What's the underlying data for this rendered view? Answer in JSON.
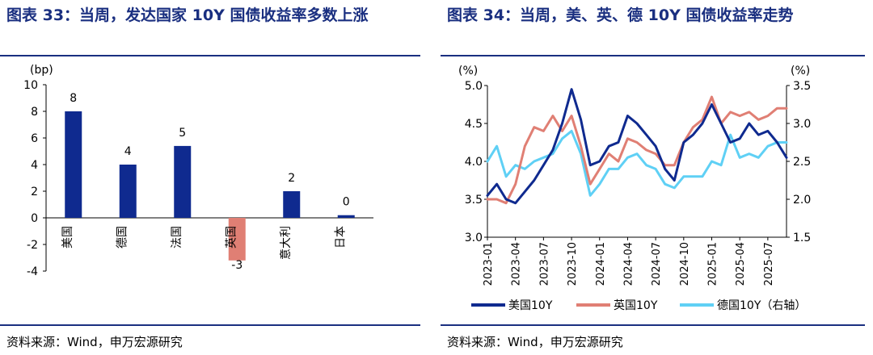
{
  "left": {
    "title": "图表 33：当周，发达国家 10Y 国债收益率多数上涨",
    "source": "资料来源：Wind，申万宏源研究"
  },
  "right": {
    "title": "图表 34：当周，美、英、德 10Y 国债收益率走势",
    "source": "资料来源：Wind，申万宏源研究"
  },
  "chart_data": [
    {
      "type": "bar",
      "title": "当周，发达国家 10Y 国债收益率多数上涨",
      "ylabel": "(bp)",
      "ylim": [
        -4,
        10
      ],
      "yticks": [
        -4,
        -2,
        0,
        2,
        4,
        6,
        8,
        10
      ],
      "categories": [
        "美国",
        "德国",
        "法国",
        "英国",
        "意大利",
        "日本"
      ],
      "values": [
        8,
        4,
        5.4,
        -3.2,
        2,
        0.2
      ],
      "data_labels": [
        "8",
        "4",
        "5",
        "-3",
        "2",
        "0"
      ],
      "colors": [
        "#0f2a8f",
        "#0f2a8f",
        "#0f2a8f",
        "#e07f74",
        "#0f2a8f",
        "#0f2a8f"
      ]
    },
    {
      "type": "line",
      "title": "当周，美、英、德 10Y 国债收益率走势",
      "left_ylabel": "(%)",
      "right_ylabel": "(%)",
      "left_ylim": [
        3.0,
        5.0
      ],
      "left_yticks": [
        "3.0",
        "3.5",
        "4.0",
        "4.5",
        "5.0"
      ],
      "right_ylim": [
        1.5,
        3.5
      ],
      "right_yticks": [
        "1.5",
        "2.0",
        "2.5",
        "3.0",
        "3.5"
      ],
      "x_range": [
        "2023-01",
        "2025-09"
      ],
      "x_ticks": [
        "2023-01",
        "2023-04",
        "2023-07",
        "2023-10",
        "2024-01",
        "2024-04",
        "2024-07",
        "2024-10",
        "2025-01",
        "2025-04",
        "2025-07"
      ],
      "legend": "bottom",
      "series": [
        {
          "name": "美国10Y",
          "axis": "left",
          "color": "#0f2a8f",
          "x": [
            "2023-01",
            "2023-02",
            "2023-03",
            "2023-04",
            "2023-05",
            "2023-06",
            "2023-07",
            "2023-08",
            "2023-09",
            "2023-10",
            "2023-11",
            "2023-12",
            "2024-01",
            "2024-02",
            "2024-03",
            "2024-04",
            "2024-05",
            "2024-06",
            "2024-07",
            "2024-08",
            "2024-09",
            "2024-10",
            "2024-11",
            "2024-12",
            "2025-01",
            "2025-02",
            "2025-03",
            "2025-04",
            "2025-05",
            "2025-06",
            "2025-07",
            "2025-08",
            "2025-09"
          ],
          "values": [
            3.55,
            3.7,
            3.5,
            3.45,
            3.6,
            3.75,
            3.95,
            4.15,
            4.5,
            4.95,
            4.55,
            3.95,
            4.0,
            4.2,
            4.25,
            4.6,
            4.5,
            4.35,
            4.2,
            3.9,
            3.75,
            4.25,
            4.35,
            4.5,
            4.75,
            4.5,
            4.25,
            4.3,
            4.5,
            4.35,
            4.4,
            4.25,
            4.05
          ]
        },
        {
          "name": "英国10Y",
          "axis": "left",
          "color": "#e07f74",
          "x": [
            "2023-01",
            "2023-02",
            "2023-03",
            "2023-04",
            "2023-05",
            "2023-06",
            "2023-07",
            "2023-08",
            "2023-09",
            "2023-10",
            "2023-11",
            "2023-12",
            "2024-01",
            "2024-02",
            "2024-03",
            "2024-04",
            "2024-05",
            "2024-06",
            "2024-07",
            "2024-08",
            "2024-09",
            "2024-10",
            "2024-11",
            "2024-12",
            "2025-01",
            "2025-02",
            "2025-03",
            "2025-04",
            "2025-05",
            "2025-06",
            "2025-07",
            "2025-08",
            "2025-09"
          ],
          "values": [
            3.5,
            3.5,
            3.45,
            3.7,
            4.2,
            4.45,
            4.4,
            4.6,
            4.4,
            4.6,
            4.2,
            3.7,
            3.9,
            4.1,
            4.0,
            4.3,
            4.25,
            4.15,
            4.1,
            3.95,
            3.95,
            4.25,
            4.45,
            4.55,
            4.85,
            4.5,
            4.65,
            4.6,
            4.65,
            4.55,
            4.6,
            4.7,
            4.7
          ]
        },
        {
          "name": "德国10Y（右轴）",
          "axis": "right",
          "color": "#5fd0f5",
          "x": [
            "2023-01",
            "2023-02",
            "2023-03",
            "2023-04",
            "2023-05",
            "2023-06",
            "2023-07",
            "2023-08",
            "2023-09",
            "2023-10",
            "2023-11",
            "2023-12",
            "2024-01",
            "2024-02",
            "2024-03",
            "2024-04",
            "2024-05",
            "2024-06",
            "2024-07",
            "2024-08",
            "2024-09",
            "2024-10",
            "2024-11",
            "2024-12",
            "2025-01",
            "2025-02",
            "2025-03",
            "2025-04",
            "2025-05",
            "2025-06",
            "2025-07",
            "2025-08",
            "2025-09"
          ],
          "values": [
            2.5,
            2.7,
            2.3,
            2.45,
            2.4,
            2.5,
            2.55,
            2.6,
            2.8,
            2.9,
            2.6,
            2.05,
            2.2,
            2.4,
            2.4,
            2.55,
            2.6,
            2.45,
            2.4,
            2.2,
            2.15,
            2.3,
            2.3,
            2.3,
            2.5,
            2.45,
            2.85,
            2.55,
            2.6,
            2.55,
            2.7,
            2.75,
            2.75
          ]
        }
      ]
    }
  ]
}
